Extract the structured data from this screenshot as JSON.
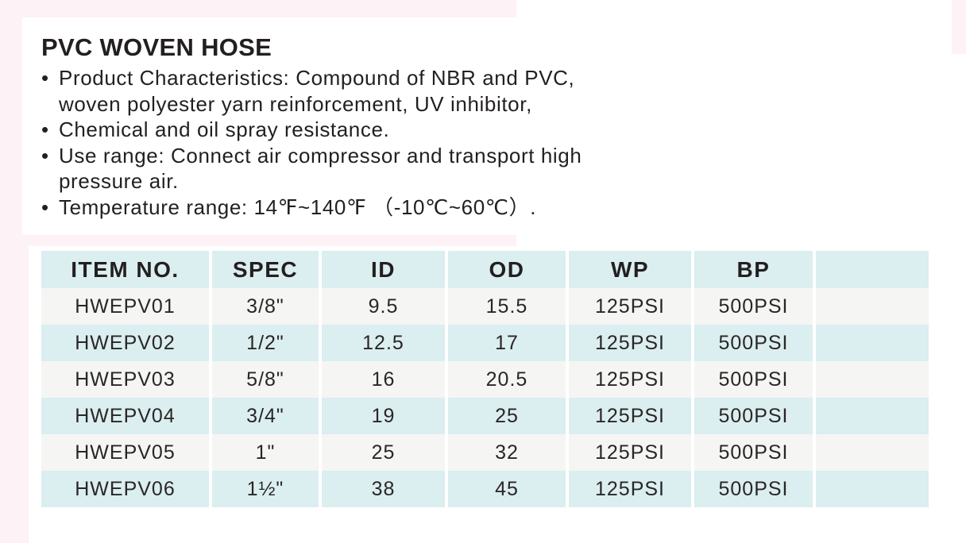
{
  "product": {
    "title": "PVC WOVEN HOSE",
    "bullet_char": "•",
    "bullets": [
      {
        "lines": [
          "Product Characteristics: Compound of NBR and PVC,",
          "woven polyester yarn reinforcement, UV inhibitor,"
        ]
      },
      {
        "lines": [
          "Chemical and oil spray resistance."
        ]
      },
      {
        "lines": [
          "Use range: Connect air compressor and transport high",
          "pressure air."
        ]
      },
      {
        "lines": [
          "Temperature range: 14℉~140℉ （-10℃~60℃）."
        ]
      }
    ]
  },
  "table": {
    "headers": [
      "ITEM NO.",
      "SPEC",
      "ID",
      "OD",
      "WP",
      "BP",
      ""
    ],
    "rows": [
      [
        "HWEPV01",
        "3/8\"",
        "9.5",
        "15.5",
        "125PSI",
        "500PSI",
        ""
      ],
      [
        "HWEPV02",
        "1/2\"",
        "12.5",
        "17",
        "125PSI",
        "500PSI",
        ""
      ],
      [
        "HWEPV03",
        "5/8\"",
        "16",
        "20.5",
        "125PSI",
        "500PSI",
        ""
      ],
      [
        "HWEPV04",
        "3/4\"",
        "19",
        "25",
        "125PSI",
        "500PSI",
        ""
      ],
      [
        "HWEPV05",
        "1\"",
        "25",
        "32",
        "125PSI",
        "500PSI",
        ""
      ],
      [
        "HWEPV06",
        "1½\"",
        "38",
        "45",
        "125PSI",
        "500PSI",
        ""
      ]
    ]
  },
  "colors": {
    "header_bg": "#dbeef0",
    "row_light_bg": "#f5f5f3",
    "row_tinted_bg": "#dbeef0",
    "text": "#231f20",
    "accent_pink": "#fdf2f5"
  }
}
